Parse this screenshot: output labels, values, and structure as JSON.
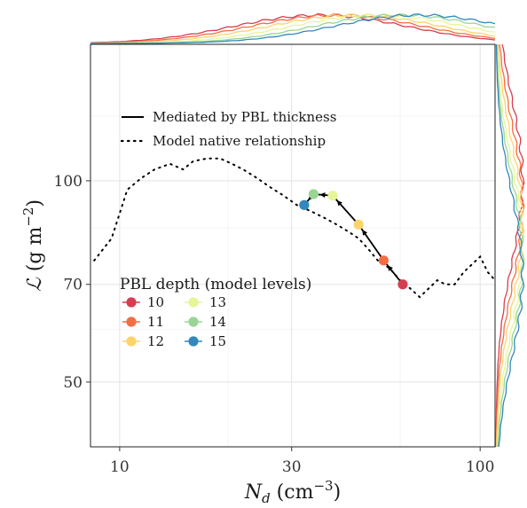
{
  "chart_data": {
    "type": "line",
    "xlabel": "N_d (cm^-3)",
    "xlabel_parts": {
      "symbol": "N",
      "subscript": "d",
      "unit_open": " (cm",
      "unit_exp": "−3",
      "unit_close": ")"
    },
    "ylabel": "ℒ (g m^-2)",
    "ylabel_parts": {
      "symbol": "ℒ",
      "unit_open": " (g m",
      "unit_exp": "−2",
      "unit_close": ")"
    },
    "x_scale": "log",
    "y_scale": "log",
    "xlim": [
      8.3,
      110
    ],
    "ylim": [
      40,
      160
    ],
    "x_ticks": [
      10,
      30,
      100
    ],
    "x_tick_labels": [
      "10",
      "30",
      "100"
    ],
    "y_ticks": [
      50,
      70,
      100
    ],
    "y_tick_labels": [
      "50",
      "70",
      "100"
    ],
    "x_minor_grid": [
      20,
      60
    ],
    "y_minor_grid": [
      60,
      85,
      125
    ],
    "grid": true,
    "line_legend": [
      {
        "label": "Mediated by PBL thickness",
        "style": "solid"
      },
      {
        "label": "Model native relationship",
        "style": "dotted"
      }
    ],
    "native_relationship": {
      "x": [
        8.5,
        9.5,
        10.5,
        11.5,
        12.5,
        13.8,
        15,
        16,
        17.5,
        19,
        20.5,
        22,
        24,
        26,
        28.5,
        31,
        34,
        37,
        40,
        43,
        46,
        49,
        52,
        56,
        60,
        64,
        68,
        72,
        76,
        80,
        85,
        90,
        95,
        100,
        105,
        110
      ],
      "y": [
        76,
        82,
        97,
        101,
        104,
        106,
        104,
        107,
        108,
        108,
        106,
        104,
        101,
        98,
        95,
        92,
        90,
        88,
        86,
        84,
        82,
        79,
        76,
        74,
        71,
        69,
        67,
        69,
        71,
        70,
        70,
        73,
        75,
        77,
        73,
        71
      ]
    },
    "pbl_legend_title": "PBL depth (model levels)",
    "series": [
      {
        "name": "10",
        "x": 61,
        "y": 70,
        "color": "#d53e4f"
      },
      {
        "name": "11",
        "x": 54,
        "y": 76,
        "color": "#f46d43"
      },
      {
        "name": "12",
        "x": 46,
        "y": 86,
        "color": "#fdd36b"
      },
      {
        "name": "13",
        "x": 39,
        "y": 95,
        "color": "#e6f598"
      },
      {
        "name": "14",
        "x": 34.5,
        "y": 95.5,
        "color": "#99d594"
      },
      {
        "name": "15",
        "x": 32.5,
        "y": 92,
        "color": "#3288bd"
      }
    ],
    "marginal_x_peaks": [
      36,
      40,
      45,
      52,
      60,
      68
    ],
    "marginal_y_peaks": [
      100,
      92,
      86,
      80,
      76,
      72
    ]
  }
}
